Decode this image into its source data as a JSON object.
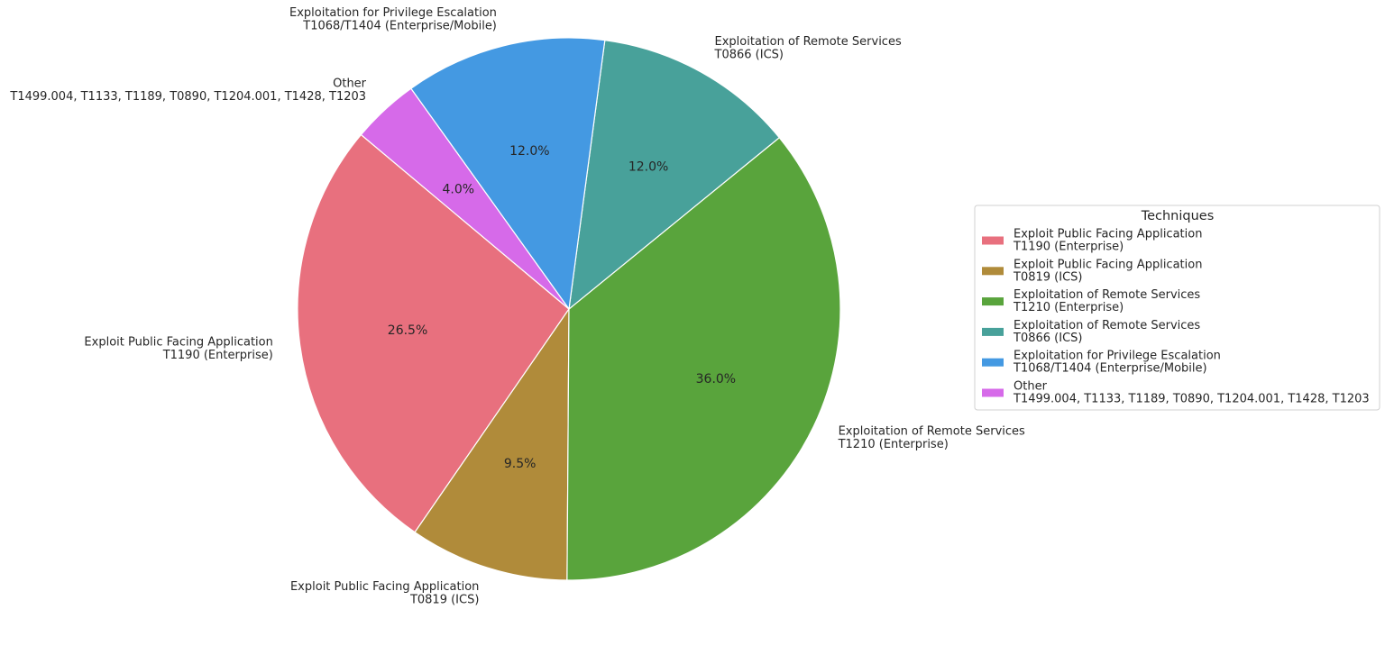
{
  "chart_data": {
    "type": "pie",
    "categories": [
      [
        "Exploit Public Facing Application",
        "T1190 (Enterprise)"
      ],
      [
        "Exploit Public Facing Application",
        "T0819 (ICS)"
      ],
      [
        "Exploitation of Remote Services",
        "T1210 (Enterprise)"
      ],
      [
        "Exploitation of Remote Services",
        "T0866 (ICS)"
      ],
      [
        "Exploitation for Privilege Escalation",
        "T1068/T1404 (Enterprise/Mobile)"
      ],
      [
        "Other",
        "T1499.004, T1133, T1189, T0890, T1204.001, T1428, T1203"
      ]
    ],
    "values": [
      26.5,
      9.5,
      36.0,
      12.0,
      12.0,
      4.0
    ],
    "value_labels": [
      "26.5%",
      "9.5%",
      "36.0%",
      "12.0%",
      "12.0%",
      "4.0%"
    ],
    "colors": [
      "#e8707e",
      "#b08b3a",
      "#59a43c",
      "#48a19a",
      "#4499e2",
      "#d66ae9"
    ],
    "startangle": 140,
    "counterclock": true,
    "legend_title": "Techniques",
    "legend_position": "right"
  }
}
